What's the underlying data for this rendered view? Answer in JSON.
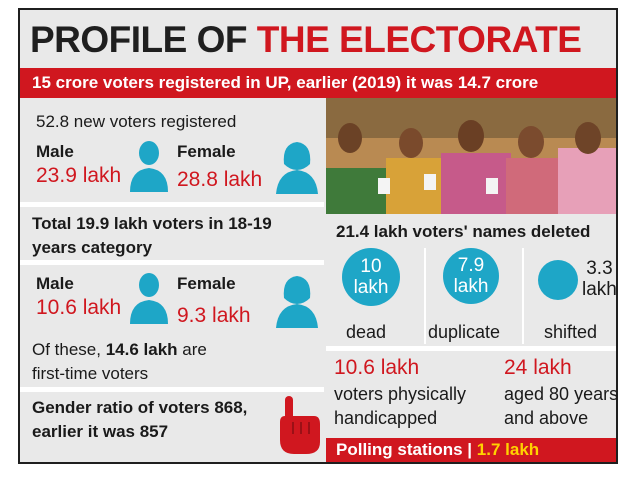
{
  "title": {
    "part1": "PROFILE OF",
    "part2": "THE ELECTORATE"
  },
  "banner": "15 crore voters registered in UP, earlier (2019) it was 14.7 crore",
  "new_voters": {
    "heading": "52.8 new voters registered",
    "male_label": "Male",
    "male_value": "23.9 lakh",
    "female_label": "Female",
    "female_value": "28.8 lakh"
  },
  "young_voters": {
    "heading_line1": "Total 19.9 lakh voters in 18-19",
    "heading_line2": "years category",
    "male_label": "Male",
    "male_value": "10.6 lakh",
    "female_label": "Female",
    "female_value": "9.3 lakh",
    "note_line1_pre": "Of these, ",
    "note_line1_bold": "14.6 lakh",
    "note_line1_post": " are",
    "note_line2": "first-time voters"
  },
  "gender_ratio": {
    "line1": "Gender ratio of voters 868,",
    "line2": "earlier it was 857"
  },
  "deleted": {
    "heading": "21.4 lakh voters' names deleted",
    "items": [
      {
        "num": "10",
        "unit": "lakh",
        "label": "dead"
      },
      {
        "num": "7.9",
        "unit": "lakh",
        "label": "duplicate"
      },
      {
        "num": "3.3",
        "unit": "lakh",
        "label": "shifted"
      }
    ]
  },
  "special": {
    "handicapped_value": "10.6 lakh",
    "handicapped_line1": "voters physically",
    "handicapped_line2": "handicapped",
    "aged_value": "24 lakh",
    "aged_line1": "aged 80 years",
    "aged_line2": "and above"
  },
  "polling": {
    "label": "Polling stations |",
    "value": "1.7 lakh"
  },
  "colors": {
    "red": "#d0171f",
    "teal": "#1ea6c7",
    "yellow": "#ffd200",
    "panel": "#e9e9e9"
  },
  "icons": [
    "male-voter-icon",
    "female-voter-icon",
    "pointing-finger-icon"
  ]
}
